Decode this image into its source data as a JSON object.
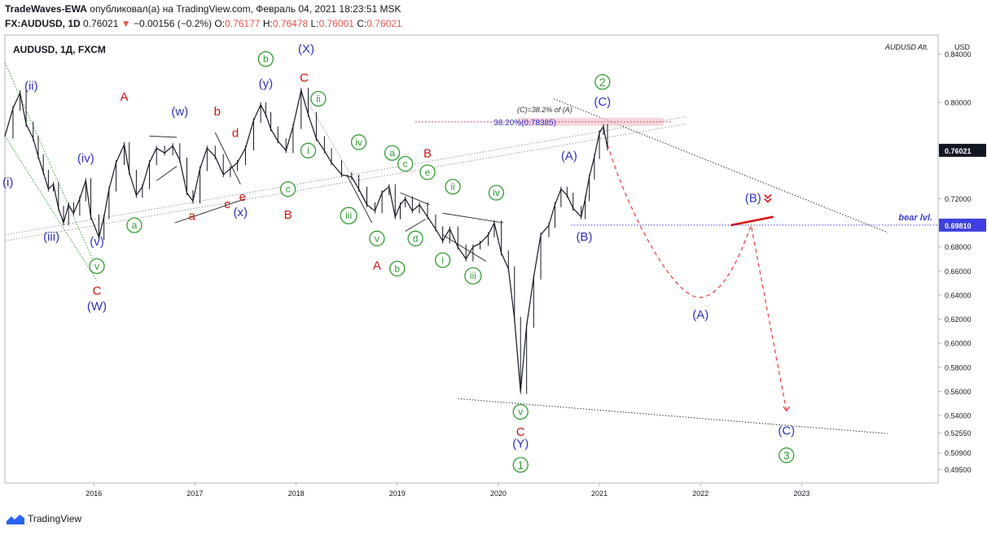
{
  "header": {
    "author": "TradeWaves-EWA",
    "published_text": "опубликовал(а) на TradingView.com, Февраль 04, 2021 18:23:51 MSK",
    "symbol": "FX:AUDUSD, 1D",
    "last": "0.76021",
    "change": "−0.00156 (−0.2%)",
    "o_label": "O:",
    "o_value": "0.76177",
    "h_label": "H:",
    "h_value": "0.76478",
    "l_label": "L:",
    "l_value": "0.76001",
    "c_label": "C:",
    "c_value": "0.76021"
  },
  "footer": {
    "brand": "TradingView"
  },
  "colors": {
    "blue": "#2e31c9",
    "red": "#d80f0f",
    "green": "#2f9e2f",
    "price": "#131722",
    "dash": "#ef3b3b",
    "bear_line": "#3d3fe0"
  },
  "chart_data": {
    "type": "line",
    "title": "AUDUSD, 1Д, FXCM",
    "watermark": "AUDUSD Alt.",
    "y_unit": "USD",
    "y_ticks": [
      "0.84000",
      "0.80000",
      "0.76000",
      "0.72000",
      "0.68000",
      "0.66000",
      "0.64000",
      "0.62000",
      "0.60000",
      "0.58000",
      "0.56000",
      "0.54000",
      "0.52550",
      "0.50900",
      "0.49500"
    ],
    "y_tick_values": [
      0.84,
      0.8,
      0.76,
      0.72,
      0.68,
      0.66,
      0.64,
      0.62,
      0.6,
      0.58,
      0.56,
      0.54,
      0.5255,
      0.509,
      0.495
    ],
    "x_ticks": [
      "2016",
      "2017",
      "2018",
      "2019",
      "2020",
      "2021",
      "2022",
      "2023"
    ],
    "x_tick_values": [
      2016,
      2017,
      2018,
      2019,
      2020,
      2021,
      2022,
      2023
    ],
    "y_range": [
      0.484,
      0.856
    ],
    "x_range": [
      2015.12,
      2024.35
    ],
    "last_price_label": "0.76021",
    "level_label": "0.69810",
    "level_value": 0.6981,
    "level_name": "bear lvl.",
    "fib_note": "(C)=38.2% of (A)",
    "fib_label": "38.20%(0.78385)",
    "fib_value": 0.78385,
    "series": [
      {
        "points": [
          [
            2015.12,
            0.772
          ],
          [
            2015.2,
            0.795
          ],
          [
            2015.27,
            0.808
          ],
          [
            2015.33,
            0.782
          ],
          [
            2015.4,
            0.77
          ],
          [
            2015.45,
            0.755
          ],
          [
            2015.5,
            0.742
          ],
          [
            2015.55,
            0.728
          ],
          [
            2015.6,
            0.732
          ],
          [
            2015.65,
            0.712
          ],
          [
            2015.7,
            0.7
          ],
          [
            2015.75,
            0.715
          ],
          [
            2015.8,
            0.708
          ],
          [
            2015.86,
            0.72
          ],
          [
            2015.92,
            0.735
          ],
          [
            2015.97,
            0.705
          ],
          [
            2016.05,
            0.688
          ],
          [
            2016.1,
            0.705
          ],
          [
            2016.15,
            0.728
          ],
          [
            2016.22,
            0.75
          ],
          [
            2016.3,
            0.765
          ],
          [
            2016.35,
            0.742
          ],
          [
            2016.42,
            0.723
          ],
          [
            2016.48,
            0.73
          ],
          [
            2016.55,
            0.75
          ],
          [
            2016.62,
            0.762
          ],
          [
            2016.7,
            0.758
          ],
          [
            2016.78,
            0.764
          ],
          [
            2016.85,
            0.752
          ],
          [
            2016.92,
            0.725
          ],
          [
            2016.98,
            0.718
          ],
          [
            2017.05,
            0.745
          ],
          [
            2017.12,
            0.762
          ],
          [
            2017.2,
            0.755
          ],
          [
            2017.28,
            0.74
          ],
          [
            2017.35,
            0.745
          ],
          [
            2017.42,
            0.75
          ],
          [
            2017.5,
            0.762
          ],
          [
            2017.58,
            0.785
          ],
          [
            2017.65,
            0.798
          ],
          [
            2017.7,
            0.79
          ],
          [
            2017.75,
            0.778
          ],
          [
            2017.82,
            0.768
          ],
          [
            2017.9,
            0.76
          ],
          [
            2017.97,
            0.78
          ],
          [
            2018.05,
            0.81
          ],
          [
            2018.12,
            0.79
          ],
          [
            2018.2,
            0.77
          ],
          [
            2018.28,
            0.76
          ],
          [
            2018.35,
            0.75
          ],
          [
            2018.45,
            0.74
          ],
          [
            2018.55,
            0.738
          ],
          [
            2018.62,
            0.728
          ],
          [
            2018.7,
            0.715
          ],
          [
            2018.78,
            0.71
          ],
          [
            2018.85,
            0.725
          ],
          [
            2018.92,
            0.73
          ],
          [
            2018.98,
            0.705
          ],
          [
            2019.03,
            0.715
          ],
          [
            2019.08,
            0.72
          ],
          [
            2019.15,
            0.71
          ],
          [
            2019.22,
            0.715
          ],
          [
            2019.3,
            0.705
          ],
          [
            2019.38,
            0.695
          ],
          [
            2019.45,
            0.685
          ],
          [
            2019.52,
            0.695
          ],
          [
            2019.6,
            0.68
          ],
          [
            2019.68,
            0.67
          ],
          [
            2019.75,
            0.68
          ],
          [
            2019.82,
            0.683
          ],
          [
            2019.9,
            0.69
          ],
          [
            2019.96,
            0.7
          ],
          [
            2020.03,
            0.675
          ],
          [
            2020.1,
            0.662
          ],
          [
            2020.16,
            0.62
          ],
          [
            2020.22,
            0.56
          ],
          [
            2020.28,
            0.615
          ],
          [
            2020.35,
            0.655
          ],
          [
            2020.42,
            0.69
          ],
          [
            2020.5,
            0.698
          ],
          [
            2020.56,
            0.715
          ],
          [
            2020.62,
            0.728
          ],
          [
            2020.68,
            0.723
          ],
          [
            2020.74,
            0.712
          ],
          [
            2020.82,
            0.705
          ],
          [
            2020.86,
            0.72
          ],
          [
            2020.9,
            0.738
          ],
          [
            2020.95,
            0.755
          ],
          [
            2021.0,
            0.775
          ],
          [
            2021.04,
            0.78
          ],
          [
            2021.08,
            0.762
          ]
        ]
      }
    ],
    "forecast_path": [
      [
        2021.08,
        0.765
      ],
      [
        2021.55,
        0.67
      ],
      [
        2022.0,
        0.638
      ],
      [
        2022.35,
        0.665
      ],
      [
        2022.5,
        0.698
      ],
      [
        2022.85,
        0.544
      ]
    ],
    "wave_labels": [
      {
        "text": "(ii)",
        "x": 2015.38,
        "y": 0.813,
        "color": "blue",
        "circle": false
      },
      {
        "text": "(i)",
        "x": 2015.15,
        "y": 0.733,
        "color": "blue",
        "circle": false
      },
      {
        "text": "(iii)",
        "x": 2015.58,
        "y": 0.688,
        "color": "blue",
        "circle": false
      },
      {
        "text": "(iv)",
        "x": 2015.92,
        "y": 0.753,
        "color": "blue",
        "circle": false
      },
      {
        "text": "(v)",
        "x": 2016.03,
        "y": 0.684,
        "color": "blue",
        "circle": false
      },
      {
        "text": "v",
        "x": 2016.03,
        "y": 0.664,
        "color": "green",
        "circle": true
      },
      {
        "text": "C",
        "x": 2016.03,
        "y": 0.643,
        "color": "red",
        "circle": false
      },
      {
        "text": "(W)",
        "x": 2016.03,
        "y": 0.63,
        "color": "blue",
        "circle": false
      },
      {
        "text": "A",
        "x": 2016.3,
        "y": 0.804,
        "color": "red",
        "circle": false
      },
      {
        "text": "a",
        "x": 2016.4,
        "y": 0.698,
        "color": "green",
        "circle": true
      },
      {
        "text": "(w)",
        "x": 2016.85,
        "y": 0.792,
        "color": "blue",
        "circle": false
      },
      {
        "text": "a",
        "x": 2016.97,
        "y": 0.705,
        "color": "red",
        "circle": false
      },
      {
        "text": "b",
        "x": 2017.22,
        "y": 0.792,
        "color": "red",
        "circle": false
      },
      {
        "text": "c",
        "x": 2017.32,
        "y": 0.715,
        "color": "red",
        "circle": false
      },
      {
        "text": "d",
        "x": 2017.4,
        "y": 0.774,
        "color": "red",
        "circle": false
      },
      {
        "text": "e",
        "x": 2017.47,
        "y": 0.721,
        "color": "red",
        "circle": false
      },
      {
        "text": "(x)",
        "x": 2017.45,
        "y": 0.708,
        "color": "blue",
        "circle": false
      },
      {
        "text": "b",
        "x": 2017.7,
        "y": 0.836,
        "color": "green",
        "circle": true
      },
      {
        "text": "(y)",
        "x": 2017.7,
        "y": 0.815,
        "color": "blue",
        "circle": false
      },
      {
        "text": "c",
        "x": 2017.92,
        "y": 0.728,
        "color": "green",
        "circle": true
      },
      {
        "text": "B",
        "x": 2017.92,
        "y": 0.706,
        "color": "red",
        "circle": false
      },
      {
        "text": "(X)",
        "x": 2018.1,
        "y": 0.844,
        "color": "blue",
        "circle": false
      },
      {
        "text": "C",
        "x": 2018.08,
        "y": 0.82,
        "color": "red",
        "circle": false
      },
      {
        "text": "ii",
        "x": 2018.22,
        "y": 0.803,
        "color": "green",
        "circle": true
      },
      {
        "text": "i",
        "x": 2018.12,
        "y": 0.76,
        "color": "green",
        "circle": true
      },
      {
        "text": "iii",
        "x": 2018.52,
        "y": 0.706,
        "color": "green",
        "circle": true
      },
      {
        "text": "iv",
        "x": 2018.62,
        "y": 0.767,
        "color": "green",
        "circle": true
      },
      {
        "text": "v",
        "x": 2018.8,
        "y": 0.687,
        "color": "green",
        "circle": true
      },
      {
        "text": "A",
        "x": 2018.8,
        "y": 0.664,
        "color": "red",
        "circle": false
      },
      {
        "text": "a",
        "x": 2018.95,
        "y": 0.758,
        "color": "green",
        "circle": true
      },
      {
        "text": "b",
        "x": 2019.0,
        "y": 0.662,
        "color": "green",
        "circle": true
      },
      {
        "text": "c",
        "x": 2019.08,
        "y": 0.749,
        "color": "green",
        "circle": true
      },
      {
        "text": "d",
        "x": 2019.18,
        "y": 0.687,
        "color": "green",
        "circle": true
      },
      {
        "text": "B",
        "x": 2019.3,
        "y": 0.757,
        "color": "red",
        "circle": false
      },
      {
        "text": "e",
        "x": 2019.3,
        "y": 0.742,
        "color": "green",
        "circle": true
      },
      {
        "text": "ii",
        "x": 2019.55,
        "y": 0.73,
        "color": "green",
        "circle": true
      },
      {
        "text": "i",
        "x": 2019.45,
        "y": 0.669,
        "color": "green",
        "circle": true
      },
      {
        "text": "iv",
        "x": 2019.98,
        "y": 0.725,
        "color": "green",
        "circle": true
      },
      {
        "text": "iii",
        "x": 2019.75,
        "y": 0.656,
        "color": "green",
        "circle": true
      },
      {
        "text": "v",
        "x": 2020.22,
        "y": 0.543,
        "color": "green",
        "circle": true
      },
      {
        "text": "C",
        "x": 2020.22,
        "y": 0.526,
        "color": "red",
        "circle": false
      },
      {
        "text": "(Y)",
        "x": 2020.22,
        "y": 0.516,
        "color": "blue",
        "circle": false
      },
      {
        "text": "1",
        "x": 2020.22,
        "y": 0.499,
        "color": "green",
        "circle": true
      },
      {
        "text": "(A)",
        "x": 2020.7,
        "y": 0.755,
        "color": "blue",
        "circle": false
      },
      {
        "text": "(B)",
        "x": 2020.85,
        "y": 0.688,
        "color": "blue",
        "circle": false
      },
      {
        "text": "2",
        "x": 2021.03,
        "y": 0.817,
        "color": "green",
        "circle": true
      },
      {
        "text": "(C)",
        "x": 2021.03,
        "y": 0.8,
        "color": "blue",
        "circle": false
      },
      {
        "text": "(A)",
        "x": 2022.0,
        "y": 0.623,
        "color": "blue",
        "circle": false
      },
      {
        "text": "(B)",
        "x": 2022.52,
        "y": 0.72,
        "color": "blue",
        "circle": false
      },
      {
        "text": "(C)",
        "x": 2022.85,
        "y": 0.527,
        "color": "blue",
        "circle": false
      },
      {
        "text": "3",
        "x": 2022.85,
        "y": 0.507,
        "color": "green",
        "circle": true
      }
    ],
    "trend_lines": [
      {
        "from": [
          2015.12,
          0.833
        ],
        "to": [
          2016.03,
          0.662
        ],
        "style": "dot",
        "color": "green"
      },
      {
        "from": [
          2015.12,
          0.772
        ],
        "to": [
          2016.03,
          0.652
        ],
        "style": "dot",
        "color": "green"
      },
      {
        "from": [
          2015.12,
          0.685
        ],
        "to": [
          2021.85,
          0.782
        ],
        "style": "dot",
        "color": "grey"
      },
      {
        "from": [
          2015.12,
          0.69
        ],
        "to": [
          2021.85,
          0.788
        ],
        "style": "dot",
        "color": "grey"
      },
      {
        "from": [
          2020.55,
          0.803
        ],
        "to": [
          2023.85,
          0.692
        ],
        "style": "dot",
        "color": "black"
      },
      {
        "from": [
          2019.6,
          0.554
        ],
        "to": [
          2023.85,
          0.525
        ],
        "style": "dot",
        "color": "black"
      },
      {
        "from": [
          2018.12,
          0.8
        ],
        "to": [
          2018.75,
          0.71
        ],
        "style": "dot",
        "color": "grey"
      },
      {
        "from": [
          2016.8,
          0.7
        ],
        "to": [
          2017.5,
          0.72
        ],
        "style": "solid",
        "color": "black"
      },
      {
        "from": [
          2016.55,
          0.772
        ],
        "to": [
          2016.82,
          0.771
        ],
        "style": "solid",
        "color": "black"
      },
      {
        "from": [
          2016.62,
          0.735
        ],
        "to": [
          2016.82,
          0.747
        ],
        "style": "solid",
        "color": "black"
      },
      {
        "from": [
          2017.2,
          0.775
        ],
        "to": [
          2017.45,
          0.732
        ],
        "style": "solid",
        "color": "black"
      },
      {
        "from": [
          2018.5,
          0.74
        ],
        "to": [
          2018.75,
          0.7
        ],
        "style": "solid",
        "color": "black"
      },
      {
        "from": [
          2019.03,
          0.725
        ],
        "to": [
          2019.32,
          0.715
        ],
        "style": "solid",
        "color": "black"
      },
      {
        "from": [
          2019.08,
          0.693
        ],
        "to": [
          2019.28,
          0.703
        ],
        "style": "solid",
        "color": "black"
      },
      {
        "from": [
          2019.45,
          0.708
        ],
        "to": [
          2020.05,
          0.7
        ],
        "style": "solid",
        "color": "black"
      },
      {
        "from": [
          2019.45,
          0.69
        ],
        "to": [
          2019.88,
          0.668
        ],
        "style": "solid",
        "color": "black"
      },
      {
        "from": [
          2022.3,
          0.698
        ],
        "to": [
          2022.72,
          0.705
        ],
        "style": "thick",
        "color": "red"
      }
    ]
  }
}
